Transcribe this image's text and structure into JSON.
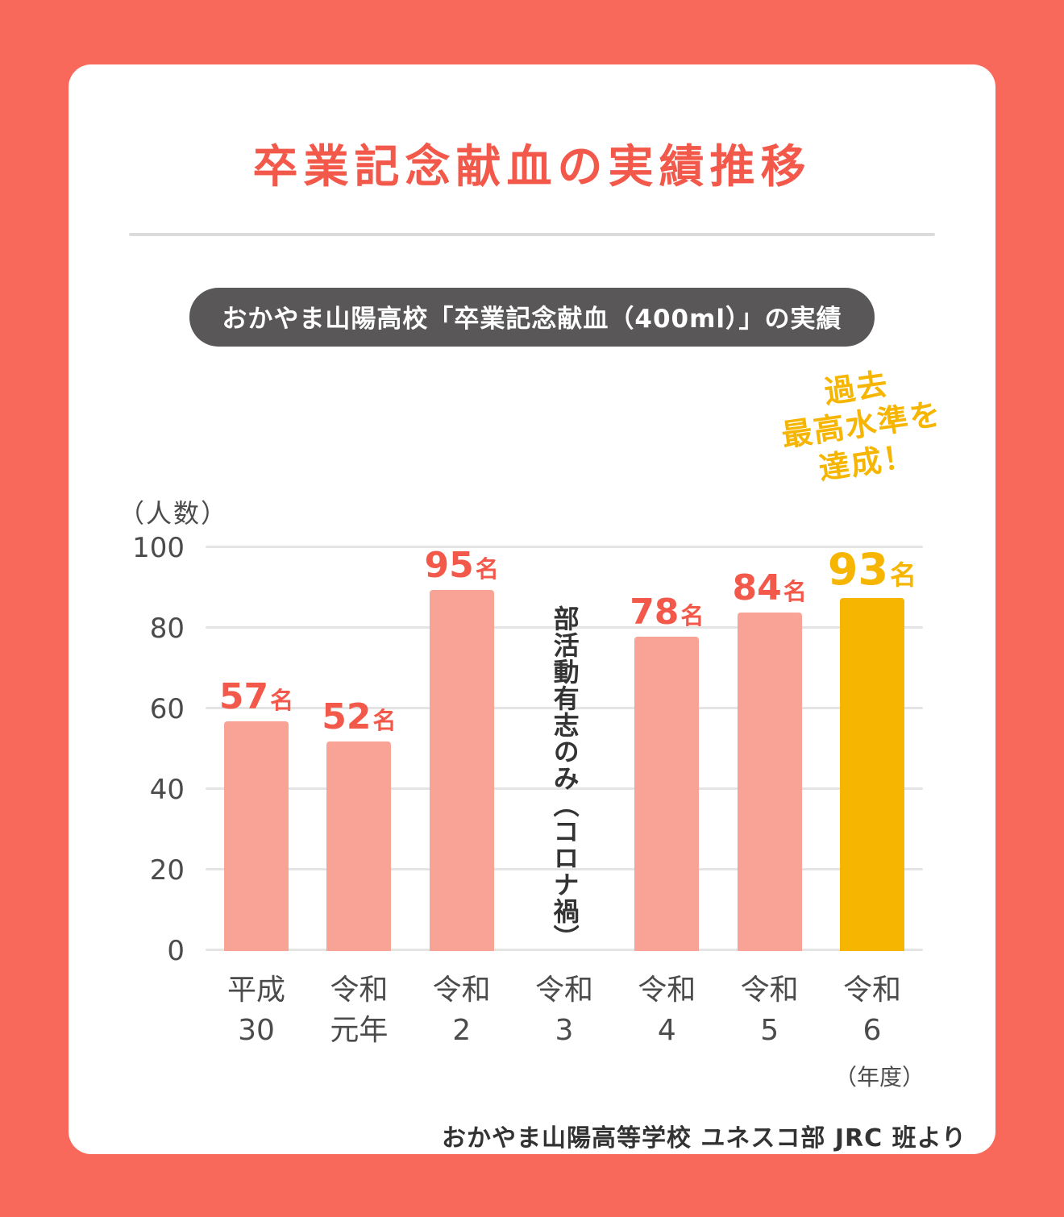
{
  "page": {
    "title": "卒業記念献血の実績推移",
    "badge": "おかやま山陽高校「卒業記念献血（400ml）」の実績",
    "annotation": "過去\n最高水準を\n達成！",
    "footer": "おかやま山陽高等学校 ユネスコ部 JRC 班より"
  },
  "chart_data": {
    "type": "bar",
    "title": "おかやま山陽高校「卒業記念献血（400ml）」の実績",
    "ylabel": "（人数）",
    "xlabel": "（年度）",
    "unit": "名",
    "ylim": [
      0,
      100
    ],
    "yticks": [
      0,
      20,
      40,
      60,
      80,
      100
    ],
    "grid": true,
    "legend_position": "none",
    "categories": [
      "平成\n30",
      "令和\n元年",
      "令和\n2",
      "令和\n3",
      "令和\n4",
      "令和\n5",
      "令和\n6"
    ],
    "values": [
      57,
      52,
      95,
      null,
      78,
      84,
      93
    ],
    "missing_note": "部活動有志のみ（コロナ禍）",
    "highlight_index": 6,
    "annotation": "過去最高水準を達成！",
    "colors": {
      "background": "#F8685B",
      "card": "#FFFFFF",
      "bar": "#F9A396",
      "bar_highlight": "#F6B501",
      "value_label": "#F2594A",
      "value_label_highlight": "#F6B501",
      "title": "#F2594A",
      "badge_bg": "#595757",
      "badge_text": "#FFFFFF",
      "axis_text": "#4B4B4B",
      "gridline": "#E4E4E4",
      "annotation": "#F6B501",
      "note_text": "#333333"
    }
  }
}
